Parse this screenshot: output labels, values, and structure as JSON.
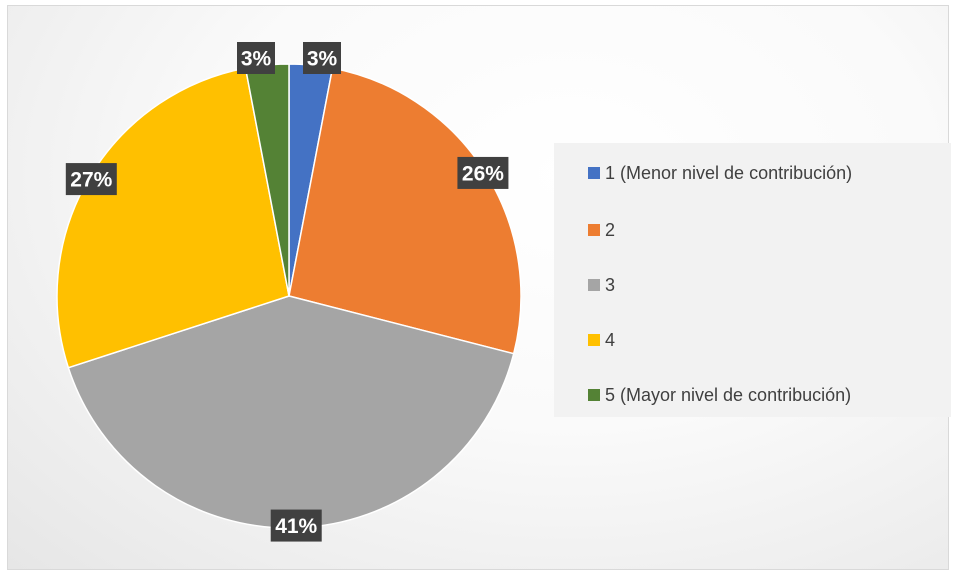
{
  "chart_data": {
    "type": "pie",
    "title": "",
    "categories": [
      "1 (Menor nivel de contribución)",
      "2",
      "3",
      "4",
      "5 (Mayor nivel de contribución)"
    ],
    "values": [
      3,
      26,
      41,
      27,
      3
    ],
    "data_labels": [
      "3%",
      "26%",
      "41%",
      "27%",
      "3%"
    ],
    "colors": [
      "#4472C4",
      "#ED7D31",
      "#A5A5A5",
      "#FFC000",
      "#548235"
    ],
    "legend_position": "right",
    "label_style": "white bold text on dark callout boxes"
  }
}
